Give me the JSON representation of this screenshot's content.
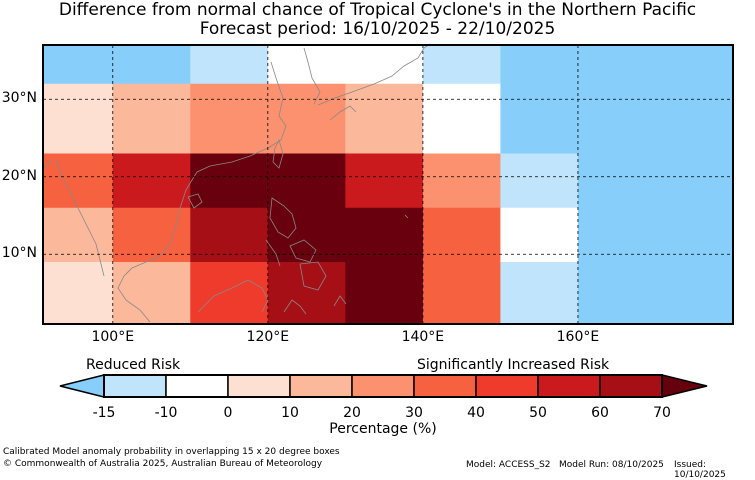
{
  "title": {
    "line1": "Difference from normal chance of Tropical Cyclone's in the Northern Pacific",
    "line2": "Forecast period: 16/10/2025 - 22/10/2025"
  },
  "map": {
    "lon_range": [
      91,
      180
    ],
    "lat_range": [
      1,
      37
    ],
    "lon_ticks": [
      "100°E",
      "120°E",
      "140°E",
      "160°E"
    ],
    "lat_ticks": [
      "30°N",
      "20°N",
      "10°N"
    ],
    "grid_lon_values": [
      100,
      120,
      140,
      160
    ],
    "grid_lat_values": [
      30,
      20,
      10
    ],
    "cells": [
      {
        "lon0": 91,
        "lon1": 110,
        "lat0": 32,
        "lat1": 37,
        "color": "#87cefa"
      },
      {
        "lon0": 110,
        "lon1": 120,
        "lat0": 32,
        "lat1": 37,
        "color": "#bfe4fb"
      },
      {
        "lon0": 120,
        "lon1": 140,
        "lat0": 32,
        "lat1": 37,
        "color": "#ffffff"
      },
      {
        "lon0": 140,
        "lon1": 150,
        "lat0": 32,
        "lat1": 37,
        "color": "#bfe4fb"
      },
      {
        "lon0": 150,
        "lon1": 180,
        "lat0": 32,
        "lat1": 37,
        "color": "#87cefa"
      },
      {
        "lon0": 91,
        "lon1": 100,
        "lat0": 23,
        "lat1": 32,
        "color": "#fde0d2"
      },
      {
        "lon0": 100,
        "lon1": 110,
        "lat0": 23,
        "lat1": 32,
        "color": "#fbb89b"
      },
      {
        "lon0": 110,
        "lon1": 130,
        "lat0": 23,
        "lat1": 32,
        "color": "#fc9170"
      },
      {
        "lon0": 130,
        "lon1": 140,
        "lat0": 23,
        "lat1": 32,
        "color": "#fbb89b"
      },
      {
        "lon0": 140,
        "lon1": 150,
        "lat0": 23,
        "lat1": 32,
        "color": "#ffffff"
      },
      {
        "lon0": 150,
        "lon1": 180,
        "lat0": 23,
        "lat1": 32,
        "color": "#87cefa"
      },
      {
        "lon0": 91,
        "lon1": 100,
        "lat0": 16,
        "lat1": 23,
        "color": "#f6613f"
      },
      {
        "lon0": 100,
        "lon1": 110,
        "lat0": 16,
        "lat1": 23,
        "color": "#cb1a1e"
      },
      {
        "lon0": 110,
        "lon1": 130,
        "lat0": 16,
        "lat1": 23,
        "color": "#68000d"
      },
      {
        "lon0": 130,
        "lon1": 140,
        "lat0": 16,
        "lat1": 23,
        "color": "#cb1a1e"
      },
      {
        "lon0": 140,
        "lon1": 150,
        "lat0": 16,
        "lat1": 23,
        "color": "#fc9170"
      },
      {
        "lon0": 150,
        "lon1": 160,
        "lat0": 16,
        "lat1": 23,
        "color": "#bfe4fb"
      },
      {
        "lon0": 160,
        "lon1": 180,
        "lat0": 16,
        "lat1": 23,
        "color": "#87cefa"
      },
      {
        "lon0": 91,
        "lon1": 100,
        "lat0": 9,
        "lat1": 16,
        "color": "#fbb89b"
      },
      {
        "lon0": 100,
        "lon1": 110,
        "lat0": 9,
        "lat1": 16,
        "color": "#f6613f"
      },
      {
        "lon0": 110,
        "lon1": 120,
        "lat0": 9,
        "lat1": 16,
        "color": "#a50f15"
      },
      {
        "lon0": 120,
        "lon1": 140,
        "lat0": 9,
        "lat1": 16,
        "color": "#68000d"
      },
      {
        "lon0": 140,
        "lon1": 150,
        "lat0": 9,
        "lat1": 16,
        "color": "#f6613f"
      },
      {
        "lon0": 150,
        "lon1": 160,
        "lat0": 9,
        "lat1": 16,
        "color": "#ffffff"
      },
      {
        "lon0": 160,
        "lon1": 180,
        "lat0": 9,
        "lat1": 16,
        "color": "#87cefa"
      },
      {
        "lon0": 91,
        "lon1": 100,
        "lat0": 1,
        "lat1": 9,
        "color": "#fde0d2"
      },
      {
        "lon0": 100,
        "lon1": 110,
        "lat0": 1,
        "lat1": 9,
        "color": "#fbb89b"
      },
      {
        "lon0": 110,
        "lon1": 120,
        "lat0": 1,
        "lat1": 9,
        "color": "#ef3b2c"
      },
      {
        "lon0": 120,
        "lon1": 130,
        "lat0": 1,
        "lat1": 9,
        "color": "#a50f15"
      },
      {
        "lon0": 130,
        "lon1": 140,
        "lat0": 1,
        "lat1": 9,
        "color": "#68000d"
      },
      {
        "lon0": 140,
        "lon1": 150,
        "lat0": 1,
        "lat1": 9,
        "color": "#f6613f"
      },
      {
        "lon0": 150,
        "lon1": 160,
        "lat0": 1,
        "lat1": 9,
        "color": "#bfe4fb"
      },
      {
        "lon0": 160,
        "lon1": 180,
        "lat0": 1,
        "lat1": 9,
        "color": "#87cefa"
      }
    ]
  },
  "colorbar": {
    "left_label": "Reduced Risk",
    "right_label": "Significantly Increased Risk",
    "xlabel": "Percentage (%)",
    "ticks": [
      "-15",
      "-10",
      "0",
      "10",
      "20",
      "30",
      "40",
      "50",
      "60",
      "70"
    ],
    "under_color": "#87cefa",
    "over_color": "#67000d",
    "colors": [
      "#bfe4fb",
      "#ffffff",
      "#fde0d2",
      "#fbb89b",
      "#fc9170",
      "#f6613f",
      "#ef3b2c",
      "#cb1a1e",
      "#a50f15"
    ]
  },
  "footer": {
    "line1": "Calibrated Model anomaly probability in overlapping 15 x 20 degree boxes",
    "line2": "© Commonwealth of Australia 2025, Australian Bureau of Meteorology",
    "model": "Model: ACCESS_S2",
    "model_run": "Model Run: 08/10/2025",
    "issued": "Issued: 10/10/2025"
  }
}
